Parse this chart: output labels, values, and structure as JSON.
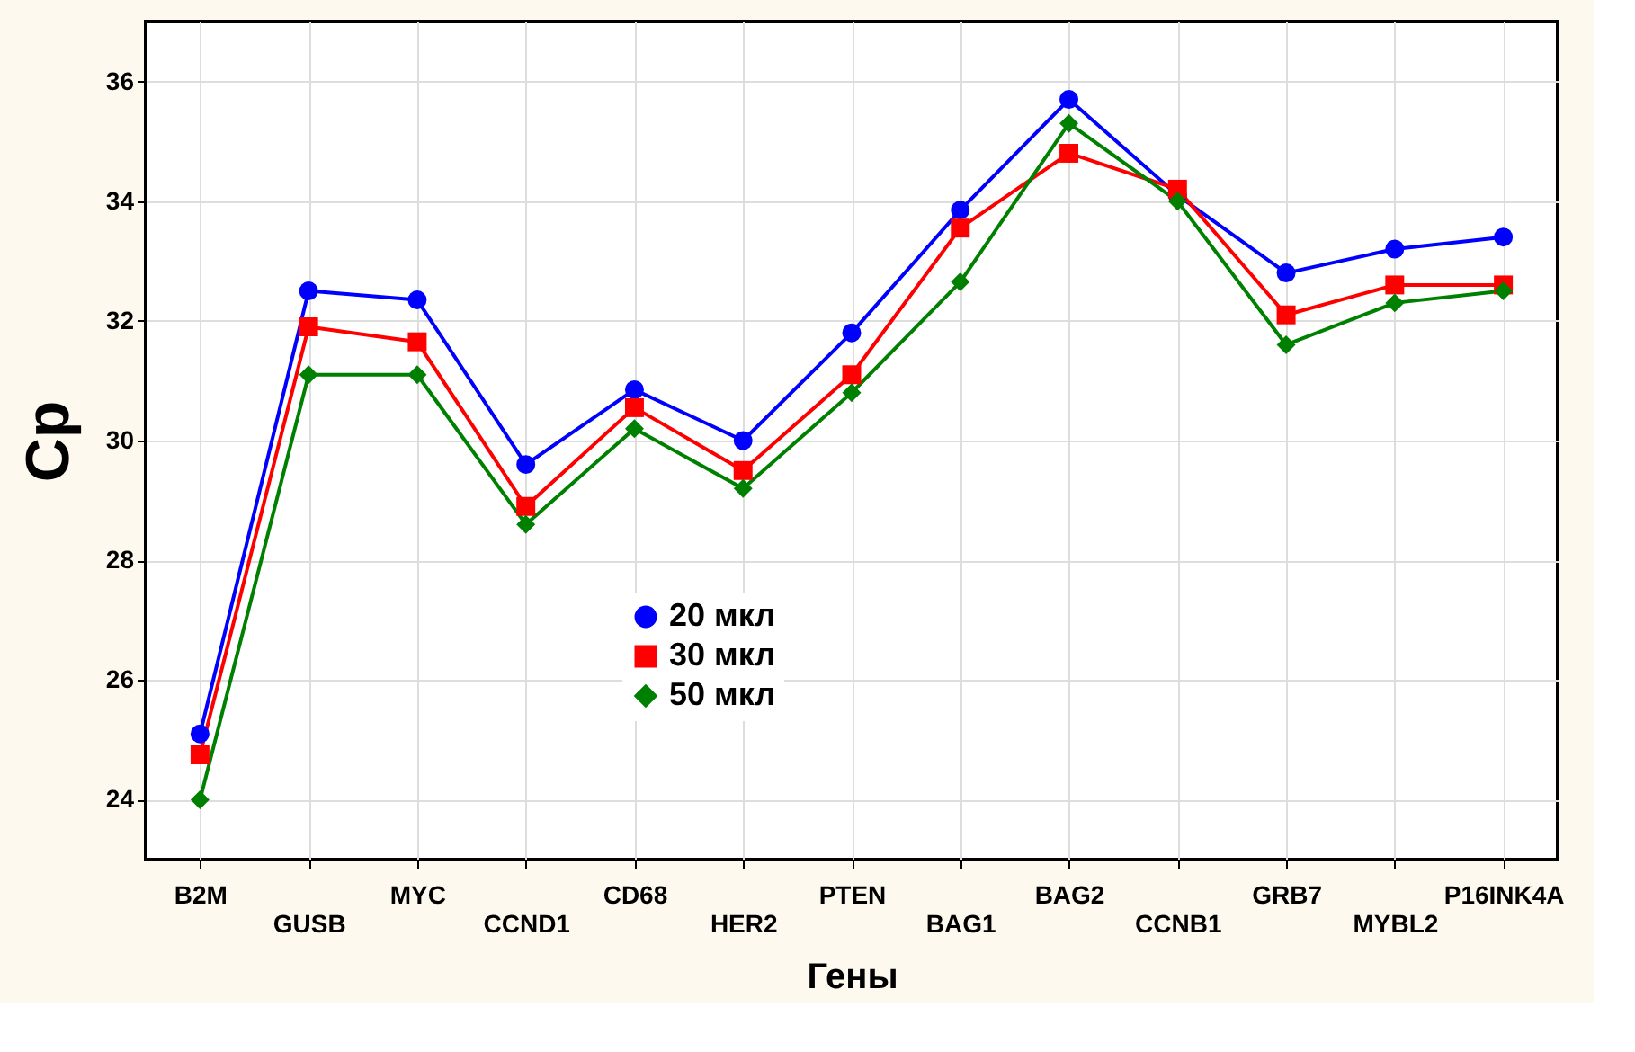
{
  "chart_data": {
    "type": "line",
    "xlabel": "Гены",
    "ylabel": "Cp",
    "categories": [
      "B2M",
      "GUSB",
      "MYC",
      "CCND1",
      "CD68",
      "HER2",
      "PTEN",
      "BAG1",
      "BAG2",
      "CCNB1",
      "GRB7",
      "MYBL2",
      "P16INK4A"
    ],
    "series": [
      {
        "name": "20 мкл",
        "color": "#0000ff",
        "marker": "circle",
        "values": [
          25.1,
          32.5,
          32.35,
          29.6,
          30.85,
          30.0,
          31.8,
          33.85,
          35.7,
          34.1,
          32.8,
          33.2,
          33.4
        ]
      },
      {
        "name": "30 мкл",
        "color": "#ff0000",
        "marker": "square",
        "values": [
          24.75,
          31.9,
          31.65,
          28.9,
          30.55,
          29.5,
          31.1,
          33.55,
          34.8,
          34.2,
          32.1,
          32.6,
          32.6
        ]
      },
      {
        "name": "50 мкл",
        "color": "#008000",
        "marker": "diamond",
        "values": [
          24.0,
          31.1,
          31.1,
          28.6,
          30.2,
          29.2,
          30.8,
          32.65,
          35.3,
          34.0,
          31.6,
          32.3,
          32.5
        ]
      }
    ],
    "ylim": [
      23,
      37
    ],
    "yticks": [
      24,
      26,
      28,
      30,
      32,
      34,
      36
    ],
    "grid": true,
    "legend": "bottom",
    "line_style": "solid"
  }
}
